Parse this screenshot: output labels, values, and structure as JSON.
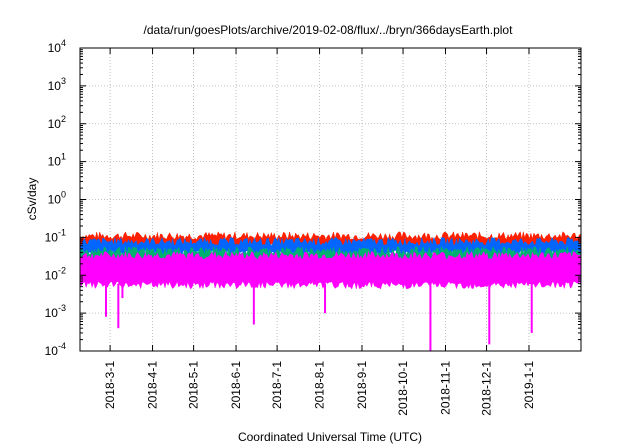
{
  "chart_data": {
    "type": "line",
    "title": "/data/run/goesPlots/archive/2019-02-08/flux/../bryn/366daysEarth.plot",
    "xlabel": "Coordinated Universal Time (UTC)",
    "ylabel": "cSv/day",
    "y_scale": "log",
    "ylim": [
      0.0001,
      10000
    ],
    "y_ticks": [
      {
        "base": "10",
        "exp": "-4",
        "value": 0.0001
      },
      {
        "base": "10",
        "exp": "-3",
        "value": 0.001
      },
      {
        "base": "10",
        "exp": "-2",
        "value": 0.01
      },
      {
        "base": "10",
        "exp": "-1",
        "value": 0.1
      },
      {
        "base": "10",
        "exp": "0",
        "value": 1
      },
      {
        "base": "10",
        "exp": "1",
        "value": 10
      },
      {
        "base": "10",
        "exp": "2",
        "value": 100
      },
      {
        "base": "10",
        "exp": "3",
        "value": 1000
      },
      {
        "base": "10",
        "exp": "4",
        "value": 10000
      }
    ],
    "xlim": [
      "2018-02-07",
      "2019-02-08"
    ],
    "x_ticks": [
      "2018-3-1",
      "2018-4-1",
      "2018-5-1",
      "2018-6-1",
      "2018-7-1",
      "2018-8-1",
      "2018-9-1",
      "2018-10-1",
      "2018-11-1",
      "2018-12-1",
      "2019-1-1"
    ],
    "grid": true,
    "series": [
      {
        "color": "#ff2000",
        "band": [
          0.06,
          0.1
        ]
      },
      {
        "color": "#0066ff",
        "band": [
          0.04,
          0.07
        ]
      },
      {
        "color": "#00b070",
        "band": [
          0.025,
          0.04
        ]
      },
      {
        "color": "#ff00ff",
        "band": [
          0.006,
          0.03
        ]
      }
    ],
    "dips": [
      {
        "date": "2018-02-26",
        "value": 0.0008
      },
      {
        "date": "2018-03-07",
        "value": 0.0004
      },
      {
        "date": "2018-03-10",
        "value": 0.0025
      },
      {
        "date": "2018-06-03",
        "value": 0.006
      },
      {
        "date": "2018-06-14",
        "value": 0.0005
      },
      {
        "date": "2018-08-05",
        "value": 0.001
      },
      {
        "date": "2018-10-21",
        "value": 0.0001
      },
      {
        "date": "2018-12-03",
        "value": 0.00015
      },
      {
        "date": "2019-01-03",
        "value": 0.0003
      }
    ]
  }
}
